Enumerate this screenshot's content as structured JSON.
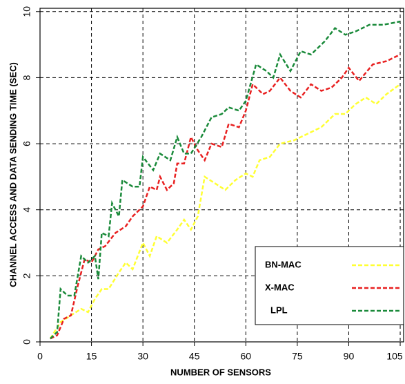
{
  "chart_data": {
    "type": "line",
    "xlabel": "NUMBER OF SENSORS",
    "ylabel": "CHANNEL ACCESS AND DATA SENDING TIME (SEC)",
    "xlim": [
      0,
      106
    ],
    "ylim": [
      0,
      10.1
    ],
    "xticks": [
      0,
      15,
      30,
      45,
      60,
      75,
      90,
      105
    ],
    "yticks": [
      0,
      2,
      4,
      6,
      8,
      10
    ],
    "grid": true,
    "legend": "lower right",
    "series": [
      {
        "name": "BN-MAC",
        "color": "#ffff33",
        "x": [
          3,
          6,
          9,
          12,
          14,
          16,
          18,
          20,
          23,
          25,
          27,
          30,
          32,
          34,
          37,
          40,
          42,
          44,
          46,
          48,
          51,
          54,
          57,
          60,
          62,
          64,
          67,
          70,
          74,
          78,
          82,
          86,
          89,
          92,
          95,
          98,
          101,
          105
        ],
        "values": [
          0.1,
          0.6,
          0.8,
          1.0,
          0.9,
          1.3,
          1.6,
          1.6,
          2.1,
          2.4,
          2.2,
          3.0,
          2.6,
          3.2,
          3.0,
          3.4,
          3.7,
          3.4,
          3.8,
          5.0,
          4.8,
          4.6,
          4.9,
          5.1,
          5.0,
          5.5,
          5.6,
          6.0,
          6.1,
          6.3,
          6.5,
          6.9,
          6.9,
          7.2,
          7.4,
          7.2,
          7.5,
          7.8
        ]
      },
      {
        "name": "X-MAC",
        "color": "#e82020",
        "x": [
          3,
          5,
          7,
          9,
          11,
          13,
          15,
          17,
          19,
          22,
          25,
          27,
          30,
          32,
          34,
          35,
          37,
          39,
          40,
          42,
          44,
          46,
          48,
          50,
          53,
          55,
          58,
          60,
          62,
          65,
          67,
          70,
          73,
          76,
          79,
          82,
          85,
          88,
          90,
          93,
          97,
          101,
          105
        ],
        "values": [
          0.1,
          0.2,
          0.7,
          0.8,
          1.7,
          2.5,
          2.4,
          2.8,
          2.9,
          3.3,
          3.5,
          3.8,
          4.1,
          4.7,
          4.6,
          5.0,
          4.6,
          4.8,
          5.4,
          5.4,
          6.2,
          5.8,
          5.5,
          6.0,
          5.9,
          6.6,
          6.5,
          7.0,
          7.8,
          7.5,
          7.6,
          8.0,
          7.6,
          7.4,
          7.8,
          7.6,
          7.7,
          8.0,
          8.3,
          7.9,
          8.4,
          8.5,
          8.7
        ]
      },
      {
        "name": "LPL",
        "color": "#1a8a3a",
        "x": [
          3,
          5,
          6,
          8,
          10,
          12,
          14,
          16,
          17,
          18,
          20,
          21,
          23,
          24,
          27,
          29,
          30,
          33,
          35,
          38,
          40,
          42,
          44,
          47,
          50,
          53,
          55,
          58,
          60,
          63,
          66,
          68,
          70,
          73,
          76,
          79,
          83,
          86,
          89,
          92,
          96,
          100,
          105
        ],
        "values": [
          0.1,
          0.3,
          1.6,
          1.4,
          1.4,
          2.6,
          2.4,
          2.6,
          1.9,
          3.3,
          3.2,
          4.2,
          3.8,
          4.9,
          4.7,
          4.7,
          5.6,
          5.2,
          5.7,
          5.5,
          6.2,
          5.7,
          5.7,
          6.2,
          6.8,
          6.9,
          7.1,
          7.0,
          7.3,
          8.4,
          8.2,
          8.0,
          8.7,
          8.2,
          8.8,
          8.7,
          9.1,
          9.5,
          9.3,
          9.4,
          9.6,
          9.6,
          9.7
        ]
      }
    ]
  }
}
